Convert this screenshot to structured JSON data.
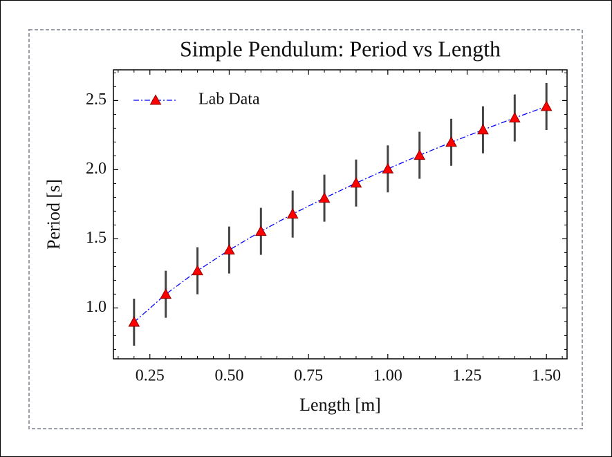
{
  "chart_data": {
    "type": "errorbar_line",
    "title": "Simple Pendulum: Period vs Length",
    "xlabel": "Length [m]",
    "ylabel": "Period [s]",
    "x": [
      0.2,
      0.3,
      0.4,
      0.5,
      0.6,
      0.7,
      0.8,
      0.9,
      1.0,
      1.1,
      1.2,
      1.3,
      1.4,
      1.5
    ],
    "series": [
      {
        "name": "Lab Data",
        "color": "#0000ff",
        "marker_color": "#ff0000",
        "marker_edge": "#8b0000",
        "error_color": "#444444",
        "values": [
          0.897,
          1.099,
          1.269,
          1.419,
          1.554,
          1.679,
          1.794,
          1.903,
          2.006,
          2.104,
          2.198,
          2.288,
          2.374,
          2.457
        ],
        "errors": [
          0.17,
          0.17,
          0.17,
          0.17,
          0.17,
          0.17,
          0.17,
          0.17,
          0.17,
          0.17,
          0.17,
          0.17,
          0.17,
          0.17
        ]
      }
    ],
    "xlim": [
      0.135,
      1.565
    ],
    "ylim": [
      0.632,
      2.722
    ],
    "xticks": [
      {
        "value": 0.25,
        "label": "0.25"
      },
      {
        "value": 0.5,
        "label": "0.50"
      },
      {
        "value": 0.75,
        "label": "0.75"
      },
      {
        "value": 1.0,
        "label": "1.00"
      },
      {
        "value": 1.25,
        "label": "1.25"
      },
      {
        "value": 1.5,
        "label": "1.50"
      }
    ],
    "yticks": [
      {
        "value": 1.0,
        "label": "1.0"
      },
      1.5,
      {
        "value": 2.0,
        "label": "2.0"
      },
      2.5
    ],
    "minor_xticks": [
      0.15,
      0.2,
      0.3,
      0.35,
      0.4,
      0.45,
      0.55,
      0.6,
      0.65,
      0.7,
      0.8,
      0.85,
      0.9,
      0.95,
      1.05,
      1.1,
      1.15,
      1.2,
      1.3,
      1.35,
      1.4,
      1.45,
      1.55
    ],
    "minor_yticks": [
      0.7,
      0.8,
      0.9,
      1.1,
      1.2,
      1.3,
      1.4,
      1.6,
      1.7,
      1.8,
      1.9,
      2.1,
      2.2,
      2.3,
      2.4,
      2.6,
      2.7
    ],
    "legend": "upper left",
    "grid": false
  }
}
